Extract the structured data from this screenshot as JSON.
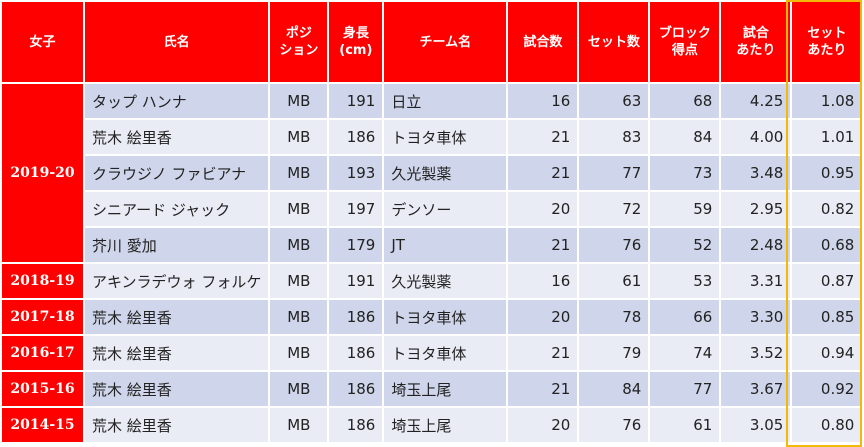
{
  "header": {
    "gender": "女子",
    "name": "氏名",
    "position": [
      "ポジ",
      "ション"
    ],
    "height": [
      "身長",
      "(cm)"
    ],
    "team": "チーム名",
    "matches": "試合数",
    "sets": "セット数",
    "block": [
      "ブロック",
      "得点"
    ],
    "per_match": [
      "試合",
      "あたり"
    ],
    "per_set": [
      "セット",
      "あたり"
    ]
  },
  "seasons": [
    {
      "season": "2019-20",
      "rows": [
        {
          "name": "タップ ハンナ",
          "position": "MB",
          "height": "191",
          "team": "日立",
          "matches": "16",
          "sets": "63",
          "block": "68",
          "per_match": "4.25",
          "per_set": "1.08"
        },
        {
          "name": "荒木 絵里香",
          "position": "MB",
          "height": "186",
          "team": "トヨタ車体",
          "matches": "21",
          "sets": "83",
          "block": "84",
          "per_match": "4.00",
          "per_set": "1.01"
        },
        {
          "name": "クラウジノ ファビアナ",
          "position": "MB",
          "height": "193",
          "team": "久光製薬",
          "matches": "21",
          "sets": "77",
          "block": "73",
          "per_match": "3.48",
          "per_set": "0.95"
        },
        {
          "name": "シニアード ジャック",
          "position": "MB",
          "height": "197",
          "team": "デンソー",
          "matches": "20",
          "sets": "72",
          "block": "59",
          "per_match": "2.95",
          "per_set": "0.82"
        },
        {
          "name": "芥川 愛加",
          "position": "MB",
          "height": "179",
          "team": "JT",
          "matches": "21",
          "sets": "76",
          "block": "52",
          "per_match": "2.48",
          "per_set": "0.68"
        }
      ]
    },
    {
      "season": "2018-19",
      "rows": [
        {
          "name": "アキンラデウォ フォルケ",
          "position": "MB",
          "height": "191",
          "team": "久光製薬",
          "matches": "16",
          "sets": "61",
          "block": "53",
          "per_match": "3.31",
          "per_set": "0.87"
        }
      ]
    },
    {
      "season": "2017-18",
      "rows": [
        {
          "name": "荒木 絵里香",
          "position": "MB",
          "height": "186",
          "team": "トヨタ車体",
          "matches": "20",
          "sets": "78",
          "block": "66",
          "per_match": "3.30",
          "per_set": "0.85"
        }
      ]
    },
    {
      "season": "2016-17",
      "rows": [
        {
          "name": "荒木 絵里香",
          "position": "MB",
          "height": "186",
          "team": "トヨタ車体",
          "matches": "21",
          "sets": "79",
          "block": "74",
          "per_match": "3.52",
          "per_set": "0.94"
        }
      ]
    },
    {
      "season": "2015-16",
      "rows": [
        {
          "name": "荒木 絵里香",
          "position": "MB",
          "height": "186",
          "team": "埼玉上尾",
          "matches": "21",
          "sets": "84",
          "block": "77",
          "per_match": "3.67",
          "per_set": "0.92"
        }
      ]
    },
    {
      "season": "2014-15",
      "rows": [
        {
          "name": "荒木 絵里香",
          "position": "MB",
          "height": "186",
          "team": "埼玉上尾",
          "matches": "20",
          "sets": "76",
          "block": "61",
          "per_match": "3.05",
          "per_set": "0.80"
        }
      ]
    }
  ],
  "colors": {
    "header_bg": "#ff0000",
    "row_dark": "#cfd5ea",
    "row_light": "#e9ebf5",
    "highlight_border": "#f2b90a"
  }
}
